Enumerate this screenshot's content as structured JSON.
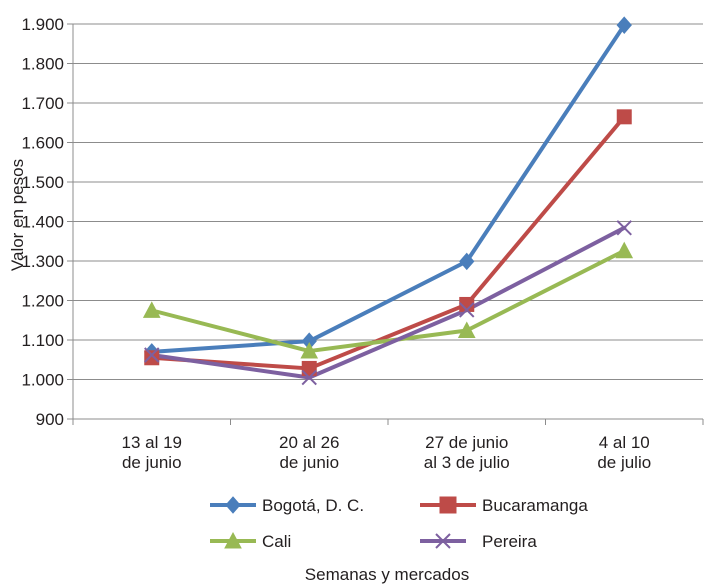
{
  "chart_data": {
    "type": "line",
    "title": "",
    "xlabel": "Semanas y mercados",
    "ylabel": "Valor en pesos",
    "ylim": [
      900,
      1900
    ],
    "y_ticks": [
      "900",
      "1.000",
      "1.100",
      "1.200",
      "1.300",
      "1.400",
      "1.500",
      "1.600",
      "1.700",
      "1.800",
      "1.900"
    ],
    "categories": [
      [
        "13 al 19",
        "de junio"
      ],
      [
        "20 al 26",
        "de junio"
      ],
      [
        "27 de junio",
        "al 3 de julio"
      ],
      [
        "4 al 10",
        "de julio"
      ]
    ],
    "grid": true,
    "legend_position": "bottom",
    "series": [
      {
        "name": "Bogotá, D. C.",
        "values": [
          1070,
          1097,
          1299,
          1897
        ],
        "color": "#4a7ebb",
        "marker": "diamond"
      },
      {
        "name": "Bucaramanga",
        "values": [
          1055,
          1028,
          1190,
          1665
        ],
        "color": "#be4b48",
        "marker": "square"
      },
      {
        "name": "Cali",
        "values": [
          1175,
          1072,
          1124,
          1326
        ],
        "color": "#98b954",
        "marker": "triangle"
      },
      {
        "name": "Pereira",
        "values": [
          1062,
          1005,
          1176,
          1384
        ],
        "color": "#7d60a0",
        "marker": "x"
      }
    ]
  }
}
